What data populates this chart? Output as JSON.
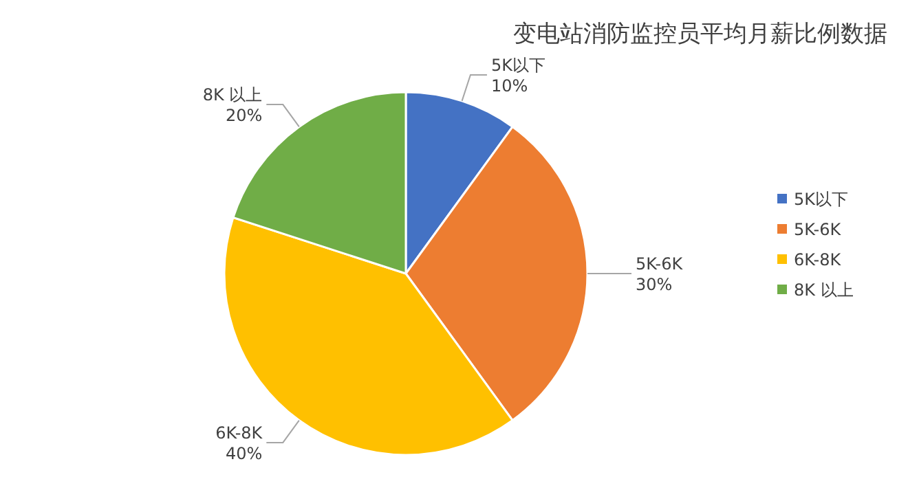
{
  "chart_data": {
    "type": "pie",
    "title": "变电站消防监控员平均月薪比例数据",
    "categories": [
      "5K以下",
      "5K-6K",
      "6K-8K",
      "8K 以上"
    ],
    "values": [
      10,
      30,
      40,
      20
    ],
    "value_labels": [
      "10%",
      "30%",
      "40%",
      "20%"
    ],
    "colors": [
      "#4472c4",
      "#ed7d31",
      "#ffc000",
      "#70ad47"
    ],
    "legend": "right"
  }
}
